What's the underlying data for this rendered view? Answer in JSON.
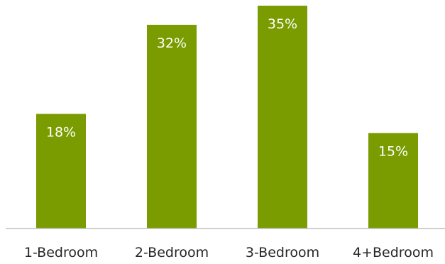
{
  "chart_data": {
    "type": "bar",
    "title": "",
    "xlabel": "",
    "ylabel": "",
    "categories": [
      "1-Bedroom",
      "2-Bedroom",
      "3-Bedroom",
      "4+Bedroom"
    ],
    "values": [
      18,
      32,
      35,
      15
    ],
    "data_labels": [
      "18%",
      "32%",
      "35%",
      "15%"
    ],
    "ylim": [
      0,
      35
    ],
    "unit": "%",
    "grid": false,
    "legend": "none",
    "colors": {
      "bar": "#7a9c00",
      "axis": "#bfbfbf",
      "data_label": "#ffffff",
      "category_label": "#262626"
    }
  }
}
